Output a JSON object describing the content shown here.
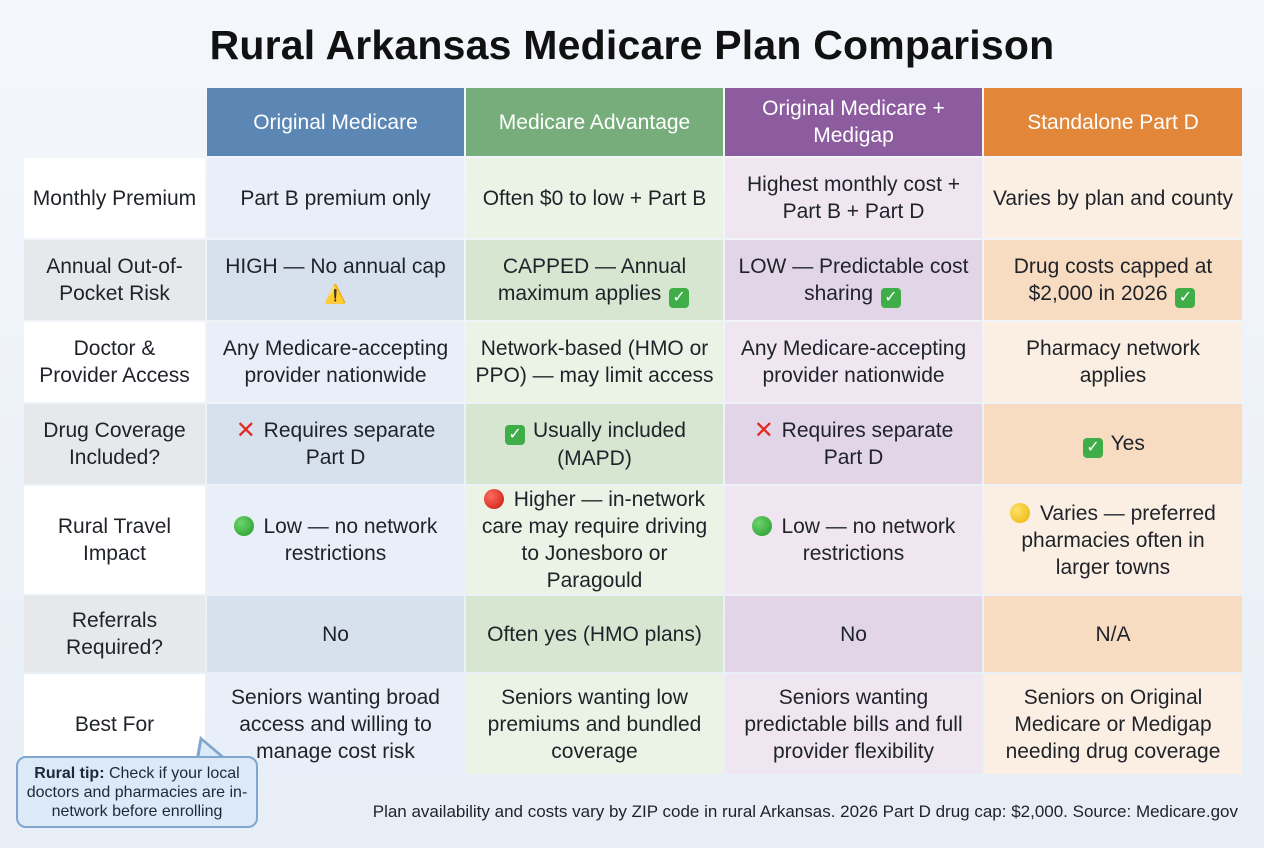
{
  "title": "Rural Arkansas Medicare Plan Comparison",
  "columns": [
    {
      "label": "Original Medicare",
      "color": "#5c86b4"
    },
    {
      "label": "Medicare Advantage",
      "color": "#77ad7b"
    },
    {
      "label": "Original Medicare + Medigap",
      "color": "#8d5c9e"
    },
    {
      "label": "Standalone Part D",
      "color": "#e2873a"
    }
  ],
  "rows": [
    {
      "label": "Monthly Premium",
      "cells": [
        {
          "text": "Part B premium only",
          "icon": ""
        },
        {
          "text": "Often $0 to low + Part B",
          "icon": ""
        },
        {
          "text": "Highest monthly cost + Part B + Part D",
          "icon": ""
        },
        {
          "text": "Varies by plan and county",
          "icon": ""
        }
      ]
    },
    {
      "label": "Annual Out-of-Pocket Risk",
      "cells": [
        {
          "text": "HIGH — No annual cap",
          "icon": "warning-icon",
          "icon_pos": "after"
        },
        {
          "text": "CAPPED — Annual maximum applies",
          "icon": "check-icon",
          "icon_pos": "after"
        },
        {
          "text": "LOW — Predictable cost sharing",
          "icon": "check-icon",
          "icon_pos": "after"
        },
        {
          "text": "Drug costs capped at $2,000 in 2026",
          "icon": "check-icon",
          "icon_pos": "after"
        }
      ]
    },
    {
      "label": "Doctor & Provider Access",
      "cells": [
        {
          "text": "Any Medicare-accepting provider nationwide",
          "icon": ""
        },
        {
          "text": "Network-based (HMO or PPO) — may limit access",
          "icon": ""
        },
        {
          "text": "Any Medicare-accepting provider nationwide",
          "icon": ""
        },
        {
          "text": "Pharmacy network applies",
          "icon": ""
        }
      ]
    },
    {
      "label": "Drug Coverage Included?",
      "cells": [
        {
          "text": "Requires separate Part D",
          "icon": "cross-icon",
          "icon_pos": "before"
        },
        {
          "text": "Usually included (MAPD)",
          "icon": "check-icon",
          "icon_pos": "before"
        },
        {
          "text": "Requires separate Part D",
          "icon": "cross-icon",
          "icon_pos": "before"
        },
        {
          "text": "Yes",
          "icon": "check-icon",
          "icon_pos": "before"
        }
      ]
    },
    {
      "label": "Rural Travel Impact",
      "cells": [
        {
          "text": "Low — no network restrictions",
          "icon": "green-dot-icon",
          "icon_pos": "before"
        },
        {
          "text": "Higher — in-network care may require driving to Jonesboro or Paragould",
          "icon": "red-dot-icon",
          "icon_pos": "before"
        },
        {
          "text": "Low — no network restrictions",
          "icon": "green-dot-icon",
          "icon_pos": "before"
        },
        {
          "text": "Varies — preferred pharmacies often in larger towns",
          "icon": "yellow-dot-icon",
          "icon_pos": "before"
        }
      ]
    },
    {
      "label": "Referrals Required?",
      "cells": [
        {
          "text": "No",
          "icon": ""
        },
        {
          "text": "Often yes (HMO plans)",
          "icon": ""
        },
        {
          "text": "No",
          "icon": ""
        },
        {
          "text": "N/A",
          "icon": ""
        }
      ]
    },
    {
      "label": "Best For",
      "cells": [
        {
          "text": "Seniors wanting broad access and willing to manage cost risk",
          "icon": ""
        },
        {
          "text": "Seniors wanting low premiums and bundled coverage",
          "icon": ""
        },
        {
          "text": "Seniors wanting predictable bills and full provider flexibility",
          "icon": ""
        },
        {
          "text": "Seniors on Original Medicare or Medigap needing drug coverage",
          "icon": ""
        }
      ]
    }
  ],
  "tip": {
    "label": "Rural tip:",
    "text": "Check if your local doctors and pharmacies are in-network before enrolling"
  },
  "footnote": "Plan availability and costs vary by ZIP code in rural Arkansas. 2026 Part D drug cap: $2,000. Source: Medicare.gov"
}
